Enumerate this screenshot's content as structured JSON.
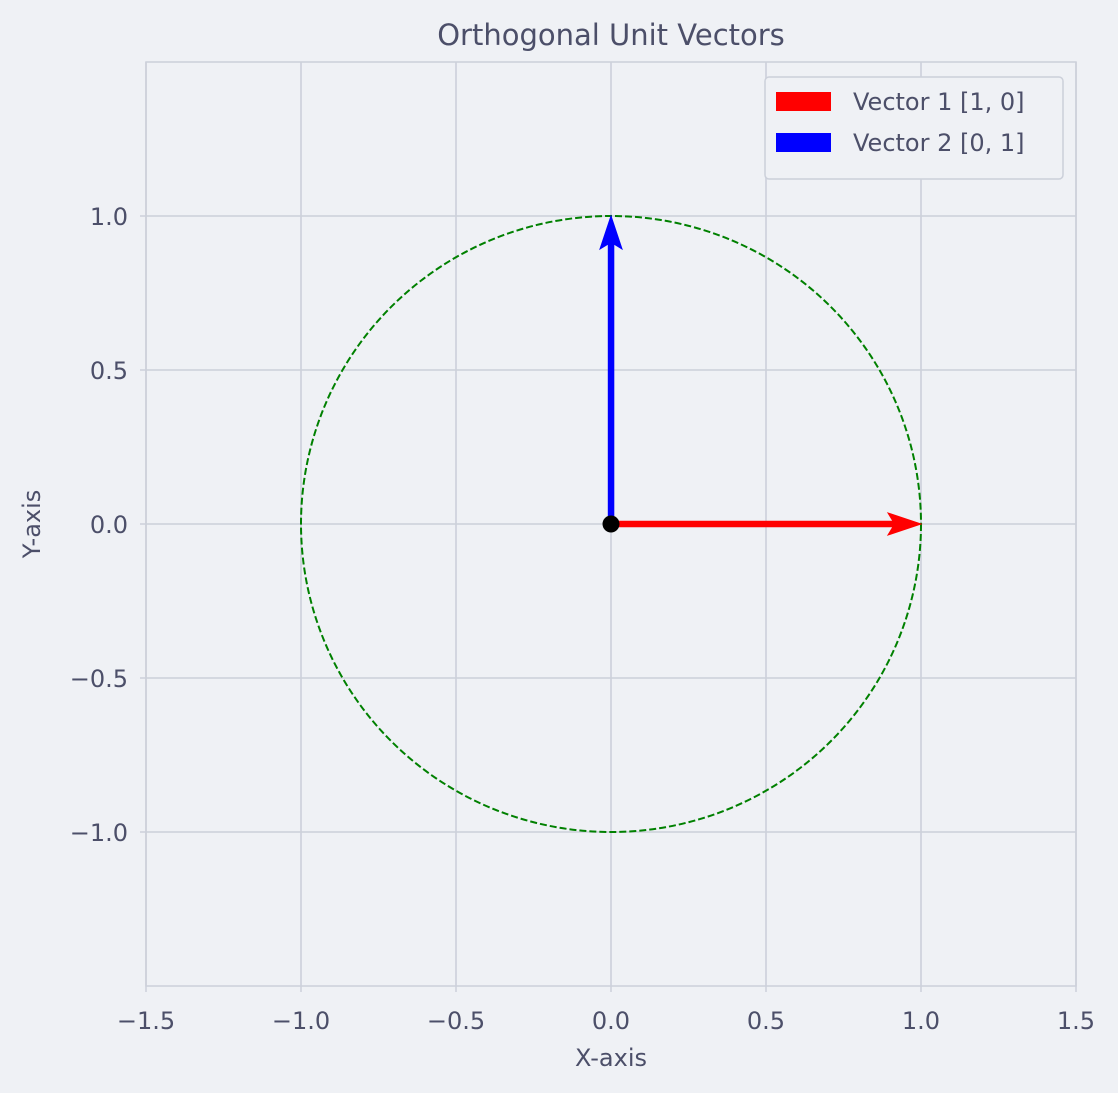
{
  "chart_data": {
    "type": "quiver",
    "title": "Orthogonal Unit Vectors",
    "xlabel": "X-axis",
    "ylabel": "Y-axis",
    "xlim": [
      -1.5,
      1.5
    ],
    "ylim": [
      -1.5,
      1.5
    ],
    "xticks": [
      -1.5,
      -1.0,
      -0.5,
      0.0,
      0.5,
      1.0,
      1.5
    ],
    "xtick_labels": [
      "−1.5",
      "−1.0",
      "−0.5",
      "0.0",
      "0.5",
      "1.0",
      "1.5"
    ],
    "yticks": [
      -1.0,
      -0.5,
      0.0,
      0.5,
      1.0
    ],
    "ytick_labels": [
      "−1.0",
      "−0.5",
      "0.0",
      "0.5",
      "1.0"
    ],
    "grid": true,
    "legend_position": "top-right",
    "vectors": [
      {
        "name": "Vector 1 [1, 0]",
        "origin": [
          0,
          0
        ],
        "components": [
          1,
          0
        ],
        "color": "#ff0000"
      },
      {
        "name": "Vector 2 [0, 1]",
        "origin": [
          0,
          0
        ],
        "components": [
          0,
          1
        ],
        "color": "#0000ff"
      }
    ],
    "unit_circle": {
      "center": [
        0,
        0
      ],
      "radius": 1,
      "style": "dashed",
      "color": "#008000"
    },
    "origin_point": {
      "x": 0,
      "y": 0,
      "color": "#000000"
    }
  },
  "colors": {
    "background": "#eff1f5",
    "grid": "#ccd0da",
    "text": "#4c4f69"
  }
}
